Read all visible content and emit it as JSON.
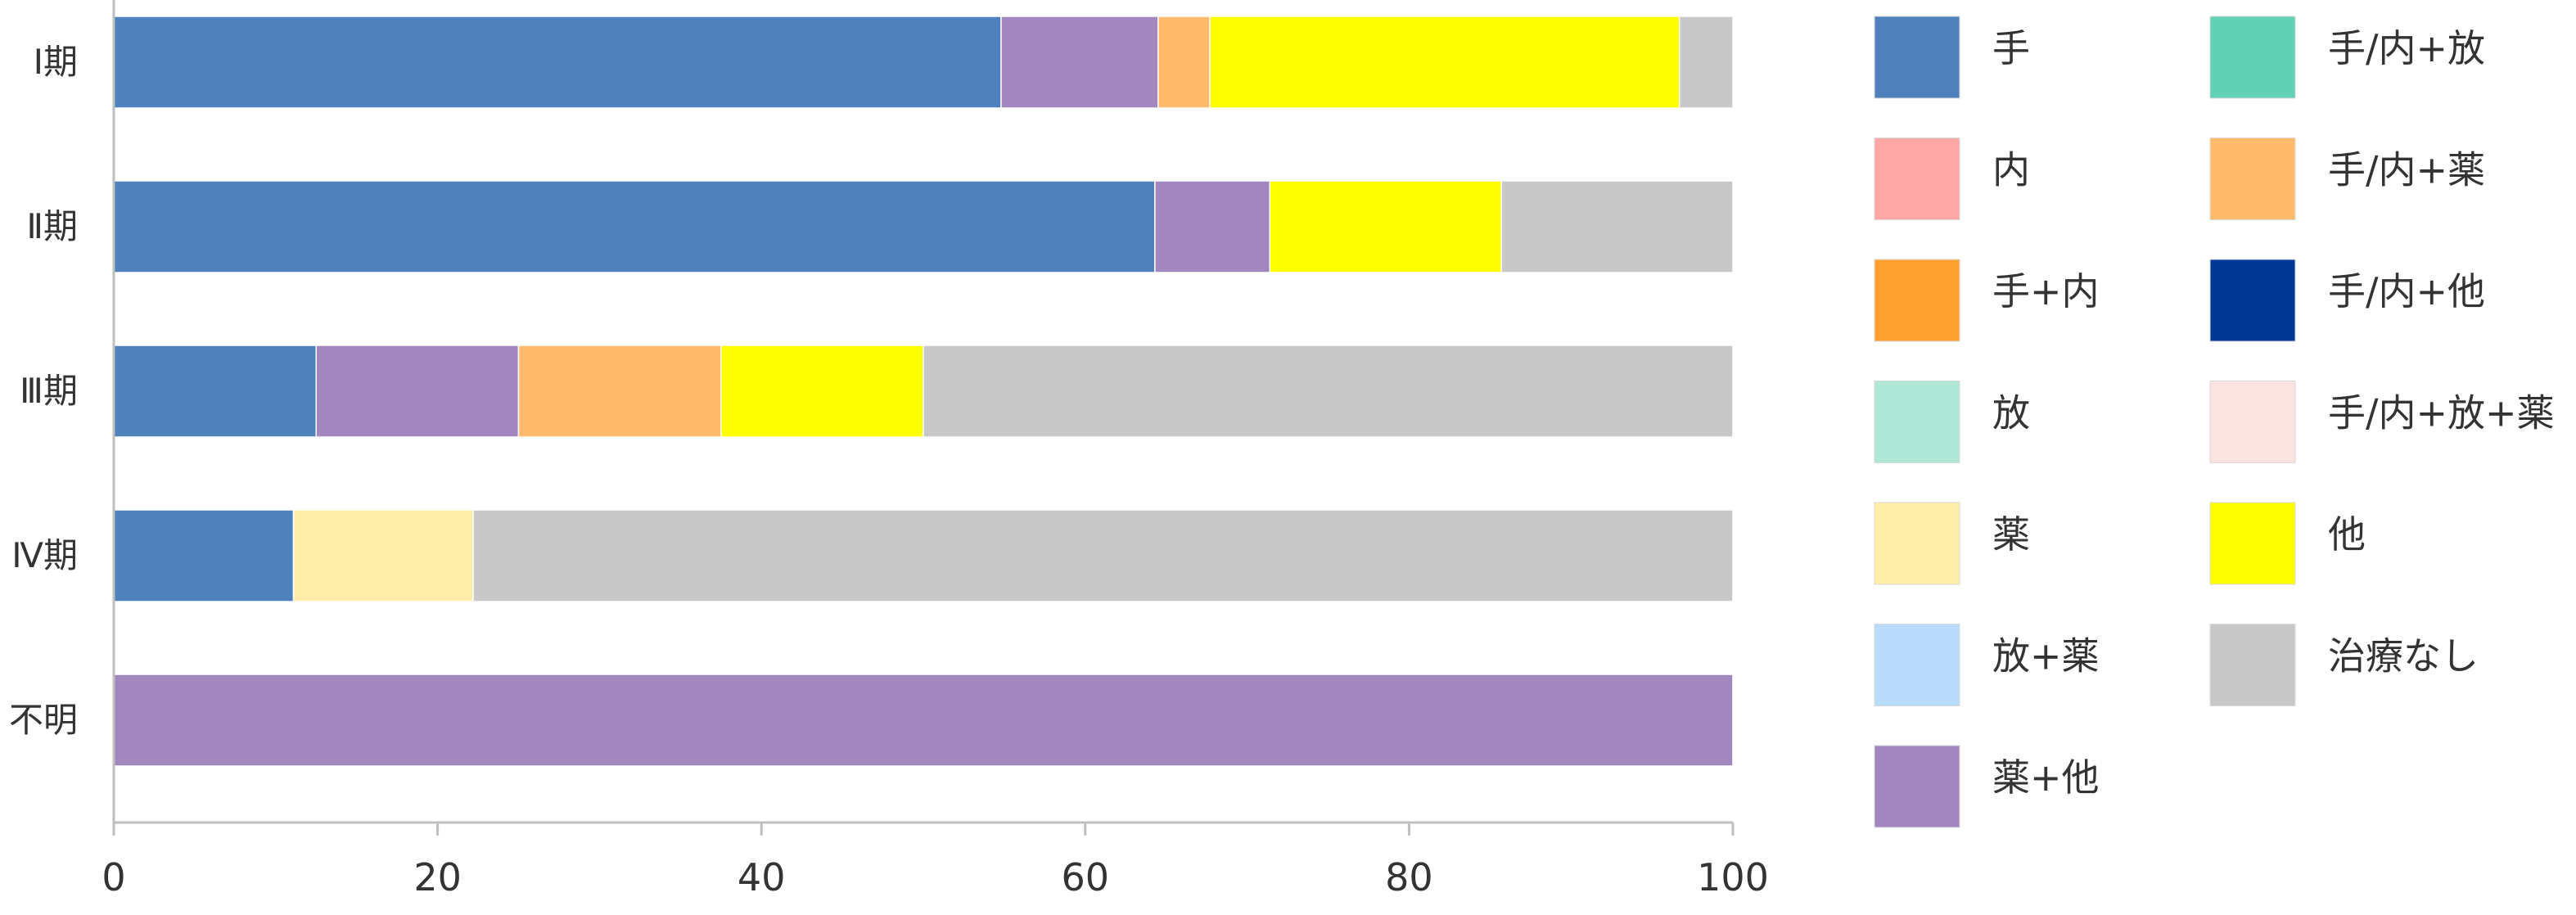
{
  "chart_data": {
    "type": "bar",
    "orientation": "horizontal",
    "stacked": true,
    "categories": [
      "Ⅰ期",
      "Ⅱ期",
      "Ⅲ期",
      "Ⅳ期",
      "不明"
    ],
    "xlim": [
      0,
      100
    ],
    "x_ticks": [
      0,
      20,
      40,
      60,
      80,
      100
    ],
    "xlabel": "",
    "ylabel": "",
    "title": "",
    "grid": false,
    "legend_position": "right",
    "series": [
      {
        "name": "手",
        "color": "#4f81bd",
        "values": [
          54.8,
          64.3,
          12.5,
          11.1,
          0
        ]
      },
      {
        "name": "内",
        "color": "#ffa7a7",
        "values": [
          0,
          0,
          0,
          0,
          0
        ]
      },
      {
        "name": "手+内",
        "color": "#ffa02f",
        "values": [
          0,
          0,
          0,
          0,
          0
        ]
      },
      {
        "name": "放",
        "color": "#b0e8d8",
        "values": [
          0,
          0,
          0,
          0,
          0
        ]
      },
      {
        "name": "薬",
        "color": "#ffeeaa",
        "values": [
          0,
          0,
          0,
          11.1,
          0
        ]
      },
      {
        "name": "放+薬",
        "color": "#b9dcfa",
        "values": [
          0,
          0,
          0,
          0,
          0
        ]
      },
      {
        "name": "薬+他",
        "color": "#a287bf",
        "values": [
          9.7,
          7.1,
          12.5,
          0,
          100
        ]
      },
      {
        "name": "手/内+放",
        "color": "#62d0b2",
        "values": [
          0,
          0,
          0,
          0,
          0
        ]
      },
      {
        "name": "手/内+薬",
        "color": "#ffbb6b",
        "values": [
          3.2,
          0,
          12.5,
          0,
          0
        ]
      },
      {
        "name": "手/内+他",
        "color": "#003893",
        "values": [
          0,
          0,
          0,
          0,
          0
        ]
      },
      {
        "name": "手/内+放+薬",
        "color": "#fbe4df",
        "values": [
          0,
          0,
          0,
          0,
          0
        ]
      },
      {
        "name": "他",
        "color": "#ffff00",
        "values": [
          29.0,
          14.3,
          12.5,
          0,
          0
        ]
      },
      {
        "name": "治療なし",
        "color": "#c8c8c8",
        "values": [
          3.3,
          14.3,
          50.0,
          77.8,
          0
        ]
      }
    ]
  }
}
